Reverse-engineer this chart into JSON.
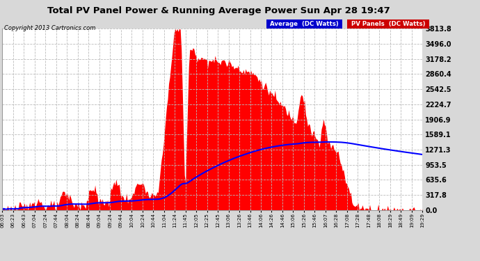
{
  "title": "Total PV Panel Power & Running Average Power Sun Apr 28 19:47",
  "copyright": "Copyright 2013 Cartronics.com",
  "ytick_labels": [
    "3813.8",
    "3496.0",
    "3178.2",
    "2860.4",
    "2542.5",
    "2224.7",
    "1906.9",
    "1589.1",
    "1271.3",
    "953.5",
    "635.6",
    "317.8",
    "0.0"
  ],
  "ytick_values": [
    3813.8,
    3496.0,
    3178.2,
    2860.4,
    2542.5,
    2224.7,
    1906.9,
    1589.1,
    1271.3,
    953.5,
    635.6,
    317.8,
    0.0
  ],
  "ymax": 3813.8,
  "ymin": 0.0,
  "bg_color": "#d8d8d8",
  "plot_bg_color": "#ffffff",
  "fill_color": "#ff0000",
  "line_color": "#0000ff",
  "grid_color": "#bbbbbb",
  "x_tick_labels": [
    "06:03",
    "06:23",
    "06:43",
    "07:04",
    "07:24",
    "07:44",
    "08:04",
    "08:24",
    "08:44",
    "09:04",
    "09:24",
    "09:44",
    "10:04",
    "10:24",
    "10:44",
    "11:04",
    "11:24",
    "11:45",
    "12:05",
    "12:25",
    "12:45",
    "13:06",
    "13:26",
    "13:46",
    "14:06",
    "14:26",
    "14:46",
    "15:06",
    "15:26",
    "15:46",
    "16:07",
    "16:28",
    "17:08",
    "17:28",
    "17:48",
    "18:08",
    "18:29",
    "18:49",
    "19:09",
    "19:29"
  ],
  "legend_blue_text": "Average  (DC Watts)",
  "legend_red_text": "PV Panels  (DC Watts)",
  "legend_blue_bg": "#0000cc",
  "legend_red_bg": "#cc0000",
  "n_points": 400
}
